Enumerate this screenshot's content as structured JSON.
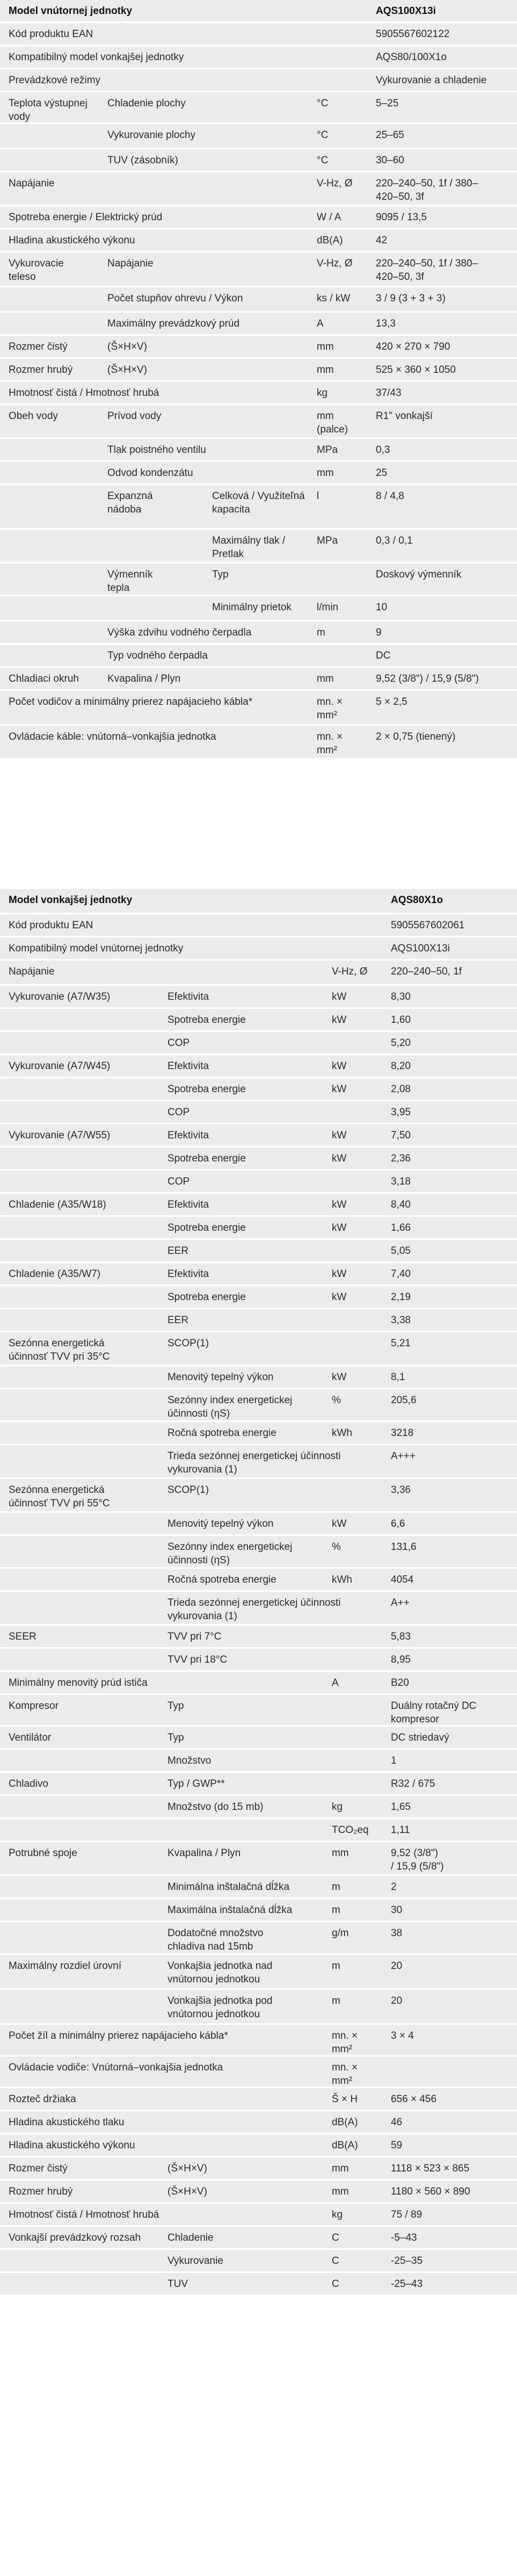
{
  "indoor": {
    "rows": [
      {
        "c": [
          "Model vnútornej jednotky",
          "",
          "",
          "AQS100X13i"
        ],
        "h": 1
      },
      {
        "c": [
          "Kód produktu EAN",
          "",
          "",
          "5905567602122"
        ]
      },
      {
        "c": [
          "Kompatibilný model vonkajšej jednotky",
          "",
          "",
          "AQS80/100X1o"
        ]
      },
      {
        "c": [
          "Prevádzkové režimy",
          "",
          "",
          "Vykurovanie a chladenie"
        ]
      },
      {
        "c": [
          "Teplota výstupnej\nvody",
          "Chladenie plochy",
          "°C",
          "5–25"
        ]
      },
      {
        "c": [
          "",
          "Vykurovanie plochy",
          "°C",
          "25–65"
        ]
      },
      {
        "c": [
          "",
          "TUV (zásobník)",
          "°C",
          "30–60"
        ]
      },
      {
        "c": [
          "Napájanie",
          "",
          "V-Hz, Ø",
          "220–240–50, 1f / 380–\n420–50, 3f"
        ]
      },
      {
        "c": [
          "Spotreba energie / Elektrický prúd",
          "",
          "W / A",
          "9095 / 13,5"
        ]
      },
      {
        "c": [
          "Hladina akustického výkonu",
          "",
          "dB(A)",
          "42"
        ]
      },
      {
        "c": [
          "Vykurovacie\nteleso",
          "Napájanie",
          "V-Hz, Ø",
          "220–240–50, 1f / 380–\n420–50, 3f"
        ]
      },
      {
        "c": [
          "",
          "Počet stupňov ohrevu / Výkon",
          "ks / kW",
          "3 / 9 (3 + 3 + 3)"
        ]
      },
      {
        "c": [
          "",
          "Maximálny prevádzkový prúd",
          "A",
          "13,3"
        ]
      },
      {
        "c": [
          "Rozmer čistý",
          "(Š×H×V)",
          "mm",
          "420 × 270 × 790"
        ]
      },
      {
        "c": [
          "Rozmer hrubý",
          "(Š×H×V)",
          "mm",
          "525 × 360 × 1050"
        ]
      },
      {
        "c": [
          "Hmotnosť čistá / Hmotnosť hrubá",
          "",
          "kg",
          "37/43"
        ]
      },
      {
        "c": [
          "Obeh vody",
          "Prívod vody",
          "mm\n(palce)",
          "R1\" vonkajší"
        ]
      },
      {
        "c": [
          "",
          "Tlak poistného ventilu",
          "MPa",
          "0,3"
        ]
      },
      {
        "c": [
          "",
          "Odvod kondenzátu",
          "mm",
          "25"
        ]
      },
      {
        "c": [
          "",
          "Expanzná\nnádoba",
          "Celková / Využiteľná\nkapacita",
          "l",
          "8 / 4,8"
        ]
      },
      {
        "c": [
          "",
          "",
          "Maximálny tlak /\nPretlak",
          "MPa",
          "0,3 / 0,1"
        ]
      },
      {
        "c": [
          "",
          "Výmenník\ntepla",
          "Typ",
          "",
          "Doskový výmenník"
        ]
      },
      {
        "c": [
          "",
          "",
          "Minimálny prietok",
          "l/min",
          "10"
        ]
      },
      {
        "c": [
          "",
          "Výška zdvihu vodného čerpadla",
          "m",
          "9"
        ]
      },
      {
        "c": [
          "",
          "Typ vodného čerpadla",
          "",
          "DC"
        ]
      },
      {
        "c": [
          "Chladiaci okruh",
          "Kvapalina / Plyn",
          "mm",
          "9,52 (3/8\") / 15,9 (5/8\")"
        ]
      },
      {
        "c": [
          "Počet vodičov a minimálny prierez napájacieho kábla*",
          "",
          "mn. ×\nmm²",
          "5 × 2,5"
        ]
      },
      {
        "c": [
          "Ovládacie káble: vnútorná–vonkajšia jednotka",
          "",
          "mn. ×\nmm²",
          "2 × 0,75 (tienený)"
        ]
      }
    ]
  },
  "outdoor": {
    "rows": [
      {
        "c": [
          "Model vonkajšej jednotky",
          "",
          "",
          "AQS80X1o"
        ],
        "h": 1
      },
      {
        "c": [
          "Kód produktu EAN",
          "",
          "",
          "5905567602061"
        ]
      },
      {
        "c": [
          "Kompatibilný model vnútornej jednotky",
          "",
          "",
          "AQS100X13i"
        ]
      },
      {
        "c": [
          "Napájanie",
          "",
          "V-Hz, Ø",
          "220–240–50, 1f"
        ]
      },
      {
        "c": [
          "Vykurovanie (A7/W35)",
          "Efektivita",
          "kW",
          "8,30"
        ]
      },
      {
        "c": [
          "",
          "Spotreba energie",
          "kW",
          "1,60"
        ]
      },
      {
        "c": [
          "",
          "COP",
          "",
          "5,20"
        ]
      },
      {
        "c": [
          "Vykurovanie (A7/W45)",
          "Efektivita",
          "kW",
          "8,20"
        ]
      },
      {
        "c": [
          "",
          "Spotreba energie",
          "kW",
          "2,08"
        ]
      },
      {
        "c": [
          "",
          "COP",
          "",
          "3,95"
        ]
      },
      {
        "c": [
          "Vykurovanie (A7/W55)",
          "Efektivita",
          "kW",
          "7,50"
        ]
      },
      {
        "c": [
          "",
          "Spotreba energie",
          "kW",
          "2,36"
        ]
      },
      {
        "c": [
          "",
          "COP",
          "",
          "3,18"
        ]
      },
      {
        "c": [
          "Chladenie (A35/W18)",
          "Efektivita",
          "kW",
          "8,40"
        ]
      },
      {
        "c": [
          "",
          "Spotreba energie",
          "kW",
          "1,66"
        ]
      },
      {
        "c": [
          "",
          "EER",
          "",
          "5,05"
        ]
      },
      {
        "c": [
          "Chladenie (A35/W7)",
          "Efektivita",
          "kW",
          "7,40"
        ]
      },
      {
        "c": [
          "",
          "Spotreba energie",
          "kW",
          "2,19"
        ]
      },
      {
        "c": [
          "",
          "EER",
          "",
          "3,38"
        ]
      },
      {
        "c": [
          "Sezónna energetická\núčinnosť TVV pri 35°C",
          "SCOP(1)",
          "",
          "5,21"
        ]
      },
      {
        "c": [
          "",
          "Menovitý tepelný výkon",
          "kW",
          "8,1"
        ]
      },
      {
        "c": [
          "",
          "Sezónny index energetickej\núčinnosti (ηS)",
          "%",
          "205,6"
        ]
      },
      {
        "c": [
          "",
          "Ročná spotreba energie",
          "kWh",
          "3218"
        ]
      },
      {
        "c": [
          "",
          "Trieda sezónnej energetickej účinnosti\nvykurovania (1)",
          "",
          "A+++"
        ]
      },
      {
        "c": [
          "Sezónna energetická\núčinnosť TVV pri 55°C",
          "SCOP(1)",
          "",
          "3,36"
        ]
      },
      {
        "c": [
          "",
          "Menovitý tepelný výkon",
          "kW",
          "6,6"
        ]
      },
      {
        "c": [
          "",
          "Sezónny index energetickej\núčinnosti (ηS)",
          "%",
          "131,6"
        ]
      },
      {
        "c": [
          "",
          "Ročná spotreba energie",
          "kWh",
          "4054"
        ]
      },
      {
        "c": [
          "",
          "Trieda sezónnej energetickej účinnosti\nvykurovania (1)",
          "",
          "A++"
        ]
      },
      {
        "c": [
          "SEER",
          "TVV pri 7°C",
          "",
          "5,83"
        ]
      },
      {
        "c": [
          "",
          "TVV pri 18°C",
          "",
          "8,95"
        ]
      },
      {
        "c": [
          "Minimálny menovitý prúd ističa",
          "",
          "A",
          "B20"
        ]
      },
      {
        "c": [
          "Kompresor",
          "Typ",
          "",
          "Duálny rotačný DC\nkompresor"
        ]
      },
      {
        "c": [
          "Ventilátor",
          "Typ",
          "",
          "DC striedavý"
        ]
      },
      {
        "c": [
          "",
          "Množstvo",
          "",
          "1"
        ]
      },
      {
        "c": [
          "Chladivo",
          "Typ / GWP**",
          "",
          "R32 / 675"
        ]
      },
      {
        "c": [
          "",
          "Množstvo (do 15 mb)",
          "kg",
          "1,65"
        ]
      },
      {
        "c": [
          "",
          "",
          "TCO₂eq",
          "1,11"
        ]
      },
      {
        "c": [
          "Potrubné spoje",
          "Kvapalina / Plyn",
          "mm",
          "9,52 (3/8\")\n/ 15,9 (5/8\")"
        ]
      },
      {
        "c": [
          "",
          "Minimálna inštalačná dĺžka",
          "m",
          "2"
        ]
      },
      {
        "c": [
          "",
          "Maximálna inštalačná dĺžka",
          "m",
          "30"
        ]
      },
      {
        "c": [
          "",
          "Dodatočné množstvo\nchladiva nad 15mb",
          "g/m",
          "38"
        ]
      },
      {
        "c": [
          "Maximálny rozdiel úrovní",
          "Vonkajšia jednotka nad\nvnútornou jednotkou",
          "m",
          "20"
        ]
      },
      {
        "c": [
          "",
          "Vonkajšia jednotka pod\nvnútornou jednotkou",
          "m",
          "20"
        ]
      },
      {
        "c": [
          "Počet žíl a minimálny prierez napájacieho kábla*",
          "",
          "mn. ×\nmm²",
          "3 × 4"
        ]
      },
      {
        "c": [
          "Ovládacie vodiče: Vnútorná–vonkajšia jednotka",
          "",
          "mn. ×\nmm²",
          ""
        ]
      },
      {
        "c": [
          "Rozteč držiaka",
          "",
          "Š × H",
          "656 × 456"
        ]
      },
      {
        "c": [
          "Hladina akustického tlaku",
          "",
          "dB(A)",
          "46"
        ]
      },
      {
        "c": [
          "Hladina akustického výkonu",
          "",
          "dB(A)",
          "59"
        ]
      },
      {
        "c": [
          "Rozmer čistý",
          "(Š×H×V)",
          "mm",
          "1118 × 523 × 865"
        ]
      },
      {
        "c": [
          "Rozmer hrubý",
          "(Š×H×V)",
          "mm",
          "1180 × 560 × 890"
        ]
      },
      {
        "c": [
          "Hmotnosť čistá / Hmotnosť hrubá",
          "",
          "kg",
          "75 / 89"
        ]
      },
      {
        "c": [
          "Vonkajší prevádzkový rozsah",
          "Chladenie",
          "C",
          "-5–43"
        ]
      },
      {
        "c": [
          "",
          "Vykurovanie",
          "C",
          "-25–35"
        ]
      },
      {
        "c": [
          "",
          "TUV",
          "C",
          "-25–43"
        ]
      }
    ]
  }
}
